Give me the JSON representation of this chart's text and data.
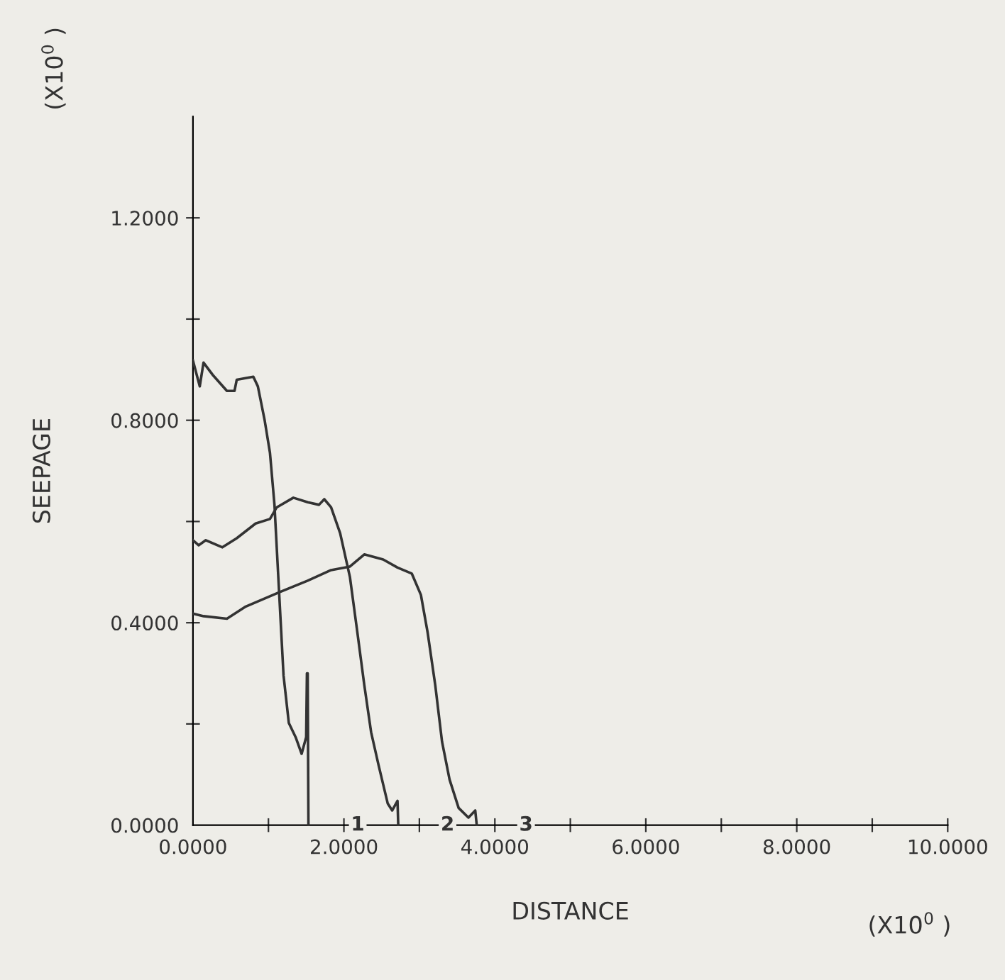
{
  "chart_data": {
    "type": "line",
    "xlabel": "DISTANCE",
    "ylabel": "SEEPAGE",
    "xlim": [
      0,
      10
    ],
    "ylim": [
      0,
      1.4
    ],
    "xticks": [
      {
        "value": 0,
        "label": "0.0000"
      },
      {
        "value": 1,
        "label": null
      },
      {
        "value": 2,
        "label": "2.0000"
      },
      {
        "value": 3,
        "label": null
      },
      {
        "value": 4,
        "label": "4.0000"
      },
      {
        "value": 5,
        "label": null
      },
      {
        "value": 6,
        "label": "6.0000"
      },
      {
        "value": 7,
        "label": null
      },
      {
        "value": 8,
        "label": "8.0000"
      },
      {
        "value": 9,
        "label": null
      },
      {
        "value": 10,
        "label": "10.0000"
      }
    ],
    "yticks": [
      {
        "value": 0,
        "label": "0.0000"
      },
      {
        "value": 0.2,
        "label": null
      },
      {
        "value": 0.4,
        "label": "0.4000"
      },
      {
        "value": 0.6,
        "label": null
      },
      {
        "value": 0.8,
        "label": "0.8000"
      },
      {
        "value": 1.0,
        "label": null
      },
      {
        "value": 1.2,
        "label": "1.2000"
      }
    ],
    "grid": false,
    "legend": false,
    "marker": "none",
    "line_style": "solid",
    "annotations": [
      "(X10$^{0}$ )",
      "(X10$^{0}$ )",
      "1",
      "2",
      "3"
    ],
    "series": [
      {
        "color": "#333333",
        "x": [
          0,
          0.09,
          0.14,
          0.26,
          0.45,
          0.55,
          0.58,
          0.8,
          0.86,
          0.95,
          1.02,
          1.08,
          1.14,
          1.2,
          1.27,
          1.36,
          1.44,
          1.5,
          1.51,
          1.52,
          1.53
        ],
        "values": [
          0.918,
          0.867,
          0.914,
          0.89,
          0.858,
          0.858,
          0.88,
          0.886,
          0.867,
          0.8,
          0.736,
          0.633,
          0.464,
          0.296,
          0.202,
          0.174,
          0.141,
          0.174,
          0.3,
          0.3,
          0
        ]
      },
      {
        "color": "#333333",
        "x": [
          0,
          0.075,
          0.17,
          0.39,
          0.58,
          0.83,
          1.02,
          1.11,
          1.33,
          1.52,
          1.67,
          1.74,
          1.83,
          1.95,
          2.08,
          2.17,
          2.27,
          2.36,
          2.46,
          2.58,
          2.64,
          2.71,
          2.72
        ],
        "values": [
          0.563,
          0.553,
          0.563,
          0.549,
          0.567,
          0.596,
          0.605,
          0.628,
          0.647,
          0.638,
          0.633,
          0.644,
          0.628,
          0.577,
          0.49,
          0.39,
          0.277,
          0.184,
          0.118,
          0.043,
          0.029,
          0.048,
          0
        ]
      },
      {
        "color": "#333333",
        "x": [
          0,
          0.14,
          0.45,
          0.7,
          1.14,
          1.52,
          1.83,
          2.08,
          2.27,
          2.52,
          2.71,
          2.9,
          3.02,
          3.11,
          3.21,
          3.3,
          3.4,
          3.52,
          3.65,
          3.74,
          3.76
        ],
        "values": [
          0.418,
          0.413,
          0.408,
          0.432,
          0.46,
          0.483,
          0.504,
          0.511,
          0.535,
          0.525,
          0.509,
          0.497,
          0.455,
          0.38,
          0.277,
          0.165,
          0.09,
          0.034,
          0.015,
          0.029,
          0
        ]
      }
    ]
  }
}
